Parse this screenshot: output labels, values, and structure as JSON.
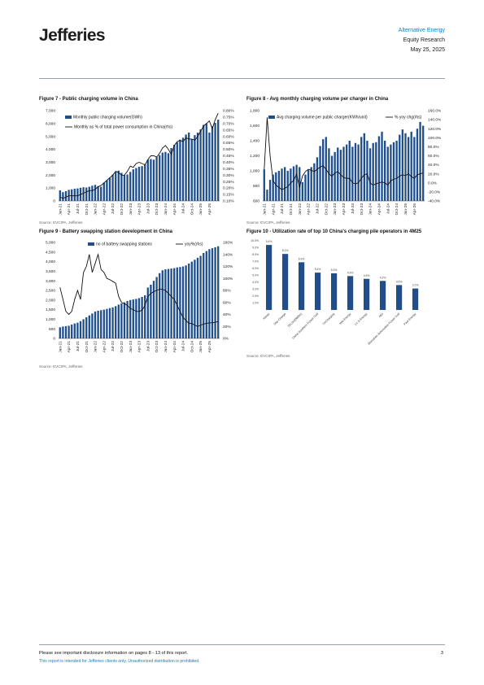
{
  "header": {
    "logo": "Jefferies",
    "sector": "Alternative Energy",
    "division": "Equity Research",
    "date": "May 25, 2025"
  },
  "months": [
    "Jan-21",
    "Apr-21",
    "Jul-21",
    "Oct-21",
    "Jan-22",
    "Apr-22",
    "Jul-22",
    "Oct-22",
    "Jan-23",
    "Apr-23",
    "Jul-23",
    "Oct-23",
    "Jan-24",
    "Apr-24",
    "Jul-24",
    "Oct-24",
    "Jan-25",
    "Apr-25"
  ],
  "fig7": {
    "title": "Figure 7 - Public charging volume in China",
    "source": "Source: EVCIPA, Jefferies",
    "legend_bar": "Monthly public charging volume(GWh)",
    "legend_line": "Monthly as % of total power consumption in China(rhs)",
    "left_ticks": [
      "0",
      "1,000",
      "2,000",
      "3,000",
      "4,000",
      "5,000",
      "6,000",
      "7,000"
    ],
    "right_ticks": [
      "0.10%",
      "0.15%",
      "0.20%",
      "0.25%",
      "0.30%",
      "0.35%",
      "0.40%",
      "0.45%",
      "0.50%",
      "0.55%",
      "0.60%",
      "0.65%",
      "0.70%",
      "0.75%",
      "0.80%"
    ]
  },
  "fig8": {
    "title": "Figure 8 - Avg monthly charging volume per charger in China",
    "source": "Source: EVCIPA, Jefferies",
    "legend_bar": "Avg charging volume per public charger(KWh/unit)",
    "legend_line": "% yoy chg(rhs)",
    "left_ticks": [
      "600",
      "800",
      "1,000",
      "1,200",
      "1,400",
      "1,600",
      "1,800"
    ],
    "right_ticks": [
      "-40.0%",
      "-20.0%",
      "0.0%",
      "20.0%",
      "40.0%",
      "60.0%",
      "80.0%",
      "100.0%",
      "120.0%",
      "140.0%",
      "160.0%"
    ]
  },
  "fig9": {
    "title": "Figure 9 - Battery swapping station development in China",
    "source": "Source: EVCIPA, Jefferies",
    "legend_bar": "no of battery swapping stations",
    "legend_line": "yoy%(rhs)",
    "left_ticks": [
      "0",
      "500",
      "1,000",
      "1,500",
      "2,000",
      "2,500",
      "3,000",
      "3,500",
      "4,000",
      "4,500",
      "5,000"
    ],
    "right_ticks": [
      "0%",
      "20%",
      "40%",
      "60%",
      "80%",
      "100%",
      "120%",
      "140%",
      "160%"
    ]
  },
  "fig10": {
    "title": "Figure 10 - Utilization rate of top 10 China's charging pile operators in 4M25",
    "source": "Source: EVCIPA, Jefferies",
    "ticks": [
      "1.0%",
      "2.0%",
      "3.0%",
      "4.0%",
      "5.0%",
      "6.0%",
      "7.0%",
      "8.0%",
      "9.0%",
      "10.0%"
    ]
  },
  "footer": {
    "disclosure": "Please see important disclosure information on pages 8 - 13 of this report.",
    "intended": "This report is intended for Jefferies clients only. Unauthorized distribution is prohibited.",
    "page": "3"
  },
  "chart_data": [
    {
      "type": "bar",
      "title": "Figure 7 - Public charging volume in China",
      "x_start": "Jan-21",
      "series": [
        {
          "name": "Monthly public charging volume(GWh)",
          "axis": "left",
          "values": [
            820,
            680,
            760,
            860,
            900,
            950,
            970,
            1020,
            1060,
            1040,
            1100,
            1180,
            1250,
            1150,
            1100,
            1420,
            1600,
            1800,
            2050,
            2250,
            2350,
            2180,
            2000,
            2050,
            2250,
            2450,
            2550,
            2650,
            2700,
            2850,
            3200,
            3250,
            3200,
            3400,
            3550,
            3750,
            3800,
            3700,
            4100,
            4350,
            4550,
            4750,
            4900,
            5150,
            5300,
            4800,
            5100,
            5300,
            5550,
            5900,
            6000,
            5300,
            5800,
            6050,
            6300
          ]
        },
        {
          "name": "Monthly as % of total power consumption in China(rhs)",
          "axis": "right",
          "values": [
            0.13,
            0.12,
            0.13,
            0.14,
            0.14,
            0.14,
            0.14,
            0.15,
            0.16,
            0.17,
            0.18,
            0.18,
            0.19,
            0.21,
            0.22,
            0.24,
            0.26,
            0.28,
            0.3,
            0.33,
            0.32,
            0.3,
            0.3,
            0.33,
            0.37,
            0.36,
            0.39,
            0.4,
            0.39,
            0.38,
            0.42,
            0.45,
            0.45,
            0.44,
            0.47,
            0.51,
            0.53,
            0.5,
            0.46,
            0.53,
            0.56,
            0.57,
            0.56,
            0.59,
            0.58,
            0.58,
            0.57,
            0.6,
            0.64,
            0.68,
            0.7,
            0.72,
            0.66,
            0.73,
            0.78
          ]
        }
      ],
      "ylim": [
        0,
        7000
      ],
      "y2lim": [
        0.1,
        0.8
      ]
    },
    {
      "type": "bar",
      "title": "Figure 8 - Avg monthly charging volume per charger in China",
      "x_start": "Jan-21",
      "series": [
        {
          "name": "Avg charging volume per public charger(KWh/unit)",
          "axis": "left",
          "values": [
            1020,
            750,
            880,
            950,
            980,
            1000,
            1030,
            1050,
            1000,
            1030,
            1060,
            1080,
            1050,
            850,
            950,
            1010,
            1050,
            1100,
            1180,
            1330,
            1420,
            1450,
            1300,
            1200,
            1250,
            1310,
            1280,
            1320,
            1350,
            1400,
            1320,
            1370,
            1350,
            1450,
            1500,
            1400,
            1300,
            1370,
            1380,
            1460,
            1520,
            1400,
            1320,
            1350,
            1380,
            1400,
            1480,
            1550,
            1500,
            1450,
            1520,
            1450,
            1560,
            1650,
            1600
          ]
        },
        {
          "name": "% yoy chg(rhs)",
          "axis": "right",
          "values": [
            30,
            145,
            60,
            5,
            -5,
            -10,
            -15,
            -12,
            -8,
            0,
            5,
            20,
            -10,
            15,
            25,
            30,
            28,
            25,
            30,
            35,
            38,
            30,
            20,
            15,
            22,
            25,
            18,
            12,
            10,
            10,
            0,
            -2,
            0,
            10,
            18,
            20,
            0,
            -5,
            -2,
            0,
            2,
            0,
            -5,
            5,
            8,
            10,
            15,
            18,
            16,
            20,
            14,
            10,
            18,
            20,
            22
          ]
        }
      ],
      "ylim": [
        600,
        1800
      ],
      "y2lim": [
        -40,
        160
      ]
    },
    {
      "type": "bar",
      "title": "Figure 9 - Battery swapping station development in China",
      "x_start": "Jan-21",
      "series": [
        {
          "name": "no of battery swapping stations",
          "axis": "left",
          "values": [
            580,
            620,
            640,
            660,
            720,
            780,
            820,
            900,
            1000,
            1100,
            1200,
            1300,
            1400,
            1440,
            1470,
            1500,
            1540,
            1580,
            1620,
            1680,
            1760,
            1820,
            1880,
            1950,
            2000,
            2030,
            2060,
            2100,
            2160,
            2250,
            2650,
            2800,
            3000,
            3200,
            3400,
            3550,
            3600,
            3620,
            3640,
            3660,
            3700,
            3720,
            3750,
            3800,
            3900,
            4000,
            4100,
            4200,
            4300,
            4450,
            4550,
            4650,
            4700,
            4750,
            4800
          ]
        },
        {
          "name": "yoy%(rhs)",
          "axis": "right",
          "values": [
            85,
            65,
            45,
            40,
            45,
            65,
            80,
            65,
            110,
            120,
            140,
            110,
            125,
            140,
            115,
            110,
            100,
            98,
            95,
            92,
            70,
            60,
            58,
            55,
            50,
            48,
            45,
            45,
            47,
            55,
            70,
            75,
            78,
            80,
            82,
            82,
            80,
            75,
            70,
            65,
            55,
            45,
            35,
            30,
            25,
            25,
            22,
            20,
            22,
            24,
            25,
            26,
            26,
            27,
            28
          ]
        }
      ],
      "ylim": [
        0,
        5000
      ],
      "y2lim": [
        0,
        160
      ]
    },
    {
      "type": "bar",
      "title": "Figure 10 - Utilization rate of top 10 China's charging pile operators in 4M25",
      "categories": [
        "Xiaoju",
        "Star Charge",
        "TELD(300001)",
        "China Southern Power Grid",
        "YKCharging",
        "Wei Energy",
        "LV Ji Energy",
        "NIO",
        "Shenzhen Automotive Power Grid",
        "Paul Energy"
      ],
      "values": [
        9.4,
        8.1,
        6.9,
        5.4,
        5.3,
        4.9,
        4.5,
        4.2,
        3.6,
        3.1
      ],
      "labels": [
        "9.4%",
        "8.1%",
        "6.9%",
        "5.4%",
        "5.3%",
        "4.9%",
        "4.5%",
        "4.2%",
        "3.6%",
        "3.1%"
      ],
      "ylim": [
        0,
        10
      ]
    }
  ]
}
